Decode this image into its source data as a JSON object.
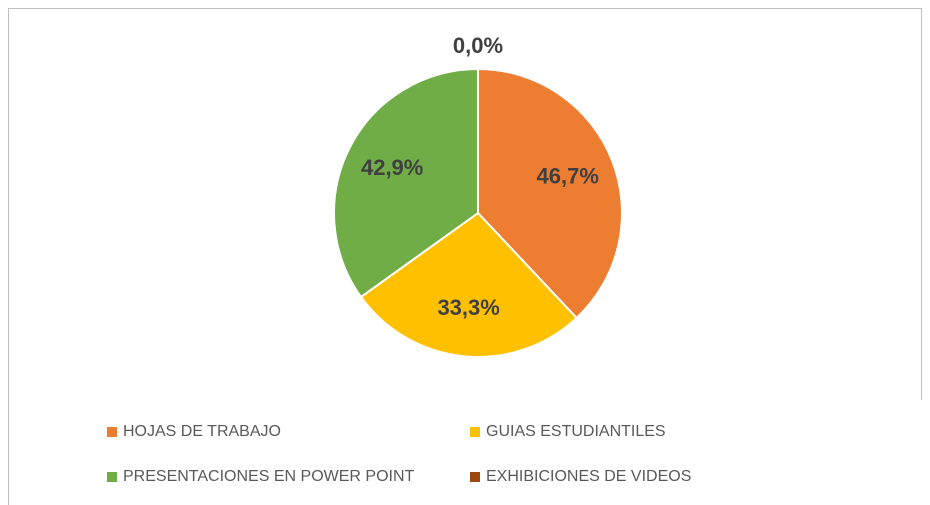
{
  "chart_data": {
    "type": "pie",
    "categories": [
      "HOJAS DE TRABAJO",
      "GUIAS ESTUDIANTILES",
      "PRESENTACIONES EN POWER POINT",
      "EXHIBICIONES DE VIDEOS"
    ],
    "values": [
      46.7,
      33.3,
      42.9,
      0.0
    ],
    "value_labels": [
      "46,7%",
      "33,3%",
      "42,9%",
      "0,0%"
    ],
    "colors": [
      "#ed7d31",
      "#ffc000",
      "#70ad47",
      "#9e480e"
    ],
    "legend": "bottom"
  }
}
